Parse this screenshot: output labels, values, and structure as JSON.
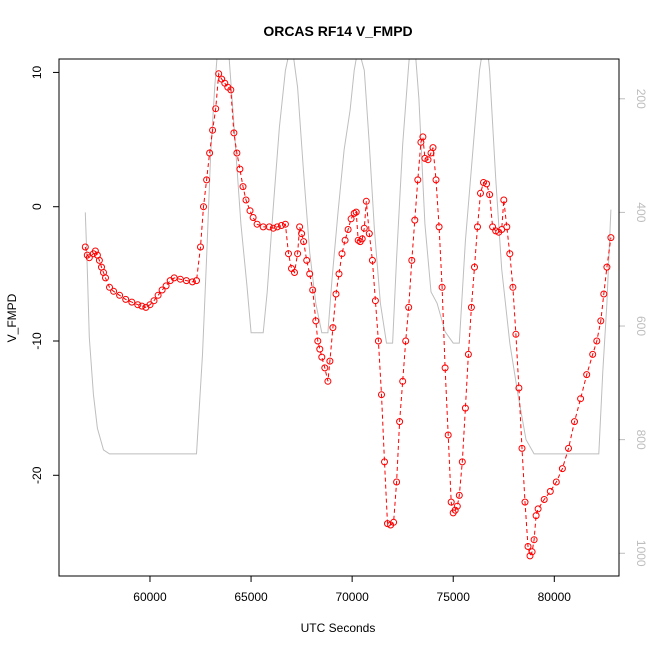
{
  "chart_data": {
    "type": "line",
    "title": "ORCAS RF14 V_FMPD",
    "xlabel": "UTC Seconds",
    "ylabel": "V_FMPD",
    "xlim": [
      55500,
      83200
    ],
    "ylim": [
      -27.5,
      11
    ],
    "x_ticks": [
      60000,
      65000,
      70000,
      75000,
      80000
    ],
    "y_ticks": [
      -20,
      -10,
      0,
      10
    ],
    "y2lim": [
      1040,
      130
    ],
    "y2_ticks": [
      200,
      400,
      600,
      800,
      1000
    ],
    "grid": false,
    "series": [
      {
        "role": "primary",
        "color": "#ff0000",
        "marker": "open-circle",
        "line": "dashed",
        "points": [
          [
            56800,
            -3.0
          ],
          [
            56900,
            -3.6
          ],
          [
            57000,
            -3.8
          ],
          [
            57200,
            -3.5
          ],
          [
            57300,
            -3.3
          ],
          [
            57400,
            -3.6
          ],
          [
            57500,
            -4.0
          ],
          [
            57600,
            -4.5
          ],
          [
            57700,
            -4.9
          ],
          [
            57800,
            -5.3
          ],
          [
            58000,
            -6.0
          ],
          [
            58200,
            -6.3
          ],
          [
            58500,
            -6.6
          ],
          [
            58800,
            -6.9
          ],
          [
            59100,
            -7.1
          ],
          [
            59400,
            -7.3
          ],
          [
            59600,
            -7.4
          ],
          [
            59800,
            -7.5
          ],
          [
            60000,
            -7.3
          ],
          [
            60200,
            -7.0
          ],
          [
            60400,
            -6.6
          ],
          [
            60600,
            -6.2
          ],
          [
            60800,
            -5.9
          ],
          [
            61000,
            -5.5
          ],
          [
            61200,
            -5.3
          ],
          [
            61500,
            -5.4
          ],
          [
            61800,
            -5.5
          ],
          [
            62100,
            -5.6
          ],
          [
            62300,
            -5.5
          ],
          [
            62500,
            -3.0
          ],
          [
            62650,
            0.0
          ],
          [
            62800,
            2.0
          ],
          [
            62950,
            4.0
          ],
          [
            63100,
            5.7
          ],
          [
            63250,
            7.3
          ],
          [
            63400,
            9.9
          ],
          [
            63550,
            9.5
          ],
          [
            63700,
            9.2
          ],
          [
            63850,
            8.9
          ],
          [
            64000,
            8.7
          ],
          [
            64150,
            5.5
          ],
          [
            64300,
            4.0
          ],
          [
            64450,
            2.8
          ],
          [
            64600,
            1.5
          ],
          [
            64750,
            0.5
          ],
          [
            64950,
            -0.3
          ],
          [
            65100,
            -0.8
          ],
          [
            65300,
            -1.3
          ],
          [
            65600,
            -1.5
          ],
          [
            65900,
            -1.5
          ],
          [
            66100,
            -1.6
          ],
          [
            66300,
            -1.5
          ],
          [
            66500,
            -1.4
          ],
          [
            66700,
            -1.3
          ],
          [
            66850,
            -3.5
          ],
          [
            67000,
            -4.6
          ],
          [
            67150,
            -4.9
          ],
          [
            67300,
            -3.5
          ],
          [
            67400,
            -1.5
          ],
          [
            67500,
            -2.0
          ],
          [
            67600,
            -2.6
          ],
          [
            67750,
            -4.0
          ],
          [
            67900,
            -5.0
          ],
          [
            68050,
            -6.2
          ],
          [
            68200,
            -8.5
          ],
          [
            68300,
            -10.0
          ],
          [
            68400,
            -10.6
          ],
          [
            68500,
            -11.2
          ],
          [
            68650,
            -12.0
          ],
          [
            68800,
            -13.0
          ],
          [
            68900,
            -11.5
          ],
          [
            69050,
            -9.0
          ],
          [
            69200,
            -6.5
          ],
          [
            69350,
            -5.0
          ],
          [
            69500,
            -3.5
          ],
          [
            69650,
            -2.5
          ],
          [
            69800,
            -1.7
          ],
          [
            69950,
            -0.9
          ],
          [
            70100,
            -0.5
          ],
          [
            70200,
            -0.4
          ],
          [
            70300,
            -2.5
          ],
          [
            70400,
            -2.6
          ],
          [
            70500,
            -2.4
          ],
          [
            70600,
            -1.6
          ],
          [
            70700,
            0.4
          ],
          [
            70850,
            -2.0
          ],
          [
            71000,
            -4.0
          ],
          [
            71150,
            -7.0
          ],
          [
            71300,
            -10.0
          ],
          [
            71450,
            -14.0
          ],
          [
            71600,
            -19.0
          ],
          [
            71750,
            -23.6
          ],
          [
            71900,
            -23.7
          ],
          [
            72050,
            -23.5
          ],
          [
            72200,
            -20.5
          ],
          [
            72350,
            -16.0
          ],
          [
            72500,
            -13.0
          ],
          [
            72650,
            -10.0
          ],
          [
            72800,
            -7.5
          ],
          [
            72950,
            -4.0
          ],
          [
            73100,
            -1.0
          ],
          [
            73250,
            2.0
          ],
          [
            73400,
            4.8
          ],
          [
            73500,
            5.2
          ],
          [
            73600,
            3.6
          ],
          [
            73750,
            3.5
          ],
          [
            73900,
            4.0
          ],
          [
            74000,
            4.4
          ],
          [
            74150,
            2.0
          ],
          [
            74300,
            -1.5
          ],
          [
            74450,
            -6.0
          ],
          [
            74600,
            -12.0
          ],
          [
            74750,
            -17.0
          ],
          [
            74900,
            -22.0
          ],
          [
            75000,
            -22.8
          ],
          [
            75100,
            -22.6
          ],
          [
            75200,
            -22.3
          ],
          [
            75300,
            -21.5
          ],
          [
            75450,
            -19.0
          ],
          [
            75600,
            -15.0
          ],
          [
            75750,
            -11.0
          ],
          [
            75900,
            -7.5
          ],
          [
            76050,
            -4.5
          ],
          [
            76200,
            -1.5
          ],
          [
            76350,
            1.0
          ],
          [
            76500,
            1.8
          ],
          [
            76650,
            1.7
          ],
          [
            76800,
            0.9
          ],
          [
            76950,
            -1.5
          ],
          [
            77100,
            -1.8
          ],
          [
            77250,
            -1.9
          ],
          [
            77400,
            -1.7
          ],
          [
            77500,
            0.5
          ],
          [
            77650,
            -1.5
          ],
          [
            77800,
            -3.5
          ],
          [
            77950,
            -6.0
          ],
          [
            78100,
            -9.5
          ],
          [
            78250,
            -13.5
          ],
          [
            78400,
            -18.0
          ],
          [
            78550,
            -22.0
          ],
          [
            78700,
            -25.3
          ],
          [
            78800,
            -26.0
          ],
          [
            78900,
            -25.7
          ],
          [
            79000,
            -24.8
          ],
          [
            79100,
            -23.0
          ],
          [
            79200,
            -22.5
          ],
          [
            79500,
            -21.8
          ],
          [
            79800,
            -21.2
          ],
          [
            80100,
            -20.5
          ],
          [
            80400,
            -19.5
          ],
          [
            80700,
            -18.0
          ],
          [
            81000,
            -16.0
          ],
          [
            81300,
            -14.3
          ],
          [
            81600,
            -12.5
          ],
          [
            81900,
            -11.0
          ],
          [
            82100,
            -10.0
          ],
          [
            82300,
            -8.5
          ],
          [
            82450,
            -6.5
          ],
          [
            82600,
            -4.5
          ],
          [
            82800,
            -2.3
          ]
        ]
      },
      {
        "role": "secondary",
        "color": "#bebebe",
        "marker": "none",
        "line": "solid",
        "points": [
          [
            56800,
            400
          ],
          [
            56900,
            500
          ],
          [
            57000,
            620
          ],
          [
            57200,
            720
          ],
          [
            57400,
            780
          ],
          [
            57700,
            818
          ],
          [
            58000,
            825
          ],
          [
            59000,
            825
          ],
          [
            60500,
            825
          ],
          [
            61500,
            825
          ],
          [
            62300,
            825
          ],
          [
            62600,
            650
          ],
          [
            62800,
            480
          ],
          [
            63000,
            300
          ],
          [
            63200,
            180
          ],
          [
            63400,
            90
          ],
          [
            63600,
            60
          ],
          [
            63900,
            120
          ],
          [
            64200,
            270
          ],
          [
            64500,
            420
          ],
          [
            64800,
            530
          ],
          [
            65000,
            612
          ],
          [
            65300,
            612
          ],
          [
            65600,
            612
          ],
          [
            65800,
            540
          ],
          [
            66100,
            390
          ],
          [
            66400,
            250
          ],
          [
            66700,
            150
          ],
          [
            67000,
            100
          ],
          [
            67300,
            180
          ],
          [
            67600,
            330
          ],
          [
            67900,
            470
          ],
          [
            68200,
            560
          ],
          [
            68500,
            612
          ],
          [
            68800,
            612
          ],
          [
            69000,
            520
          ],
          [
            69300,
            400
          ],
          [
            69600,
            290
          ],
          [
            69900,
            220
          ],
          [
            70100,
            150
          ],
          [
            70300,
            110
          ],
          [
            70600,
            150
          ],
          [
            70850,
            280
          ],
          [
            71100,
            430
          ],
          [
            71400,
            560
          ],
          [
            71700,
            630
          ],
          [
            72000,
            630
          ],
          [
            72200,
            480
          ],
          [
            72500,
            280
          ],
          [
            72800,
            140
          ],
          [
            73000,
            60
          ],
          [
            73300,
            200
          ],
          [
            73600,
            420
          ],
          [
            73900,
            540
          ],
          [
            74200,
            560
          ],
          [
            74600,
            610
          ],
          [
            75000,
            630
          ],
          [
            75300,
            630
          ],
          [
            75600,
            450
          ],
          [
            76000,
            280
          ],
          [
            76300,
            150
          ],
          [
            76600,
            80
          ],
          [
            76800,
            150
          ],
          [
            77100,
            340
          ],
          [
            77400,
            500
          ],
          [
            77800,
            630
          ],
          [
            78200,
            720
          ],
          [
            78600,
            800
          ],
          [
            79000,
            825
          ],
          [
            80000,
            825
          ],
          [
            81000,
            825
          ],
          [
            82200,
            825
          ],
          [
            82400,
            680
          ],
          [
            82600,
            560
          ],
          [
            82800,
            395
          ]
        ]
      }
    ]
  }
}
